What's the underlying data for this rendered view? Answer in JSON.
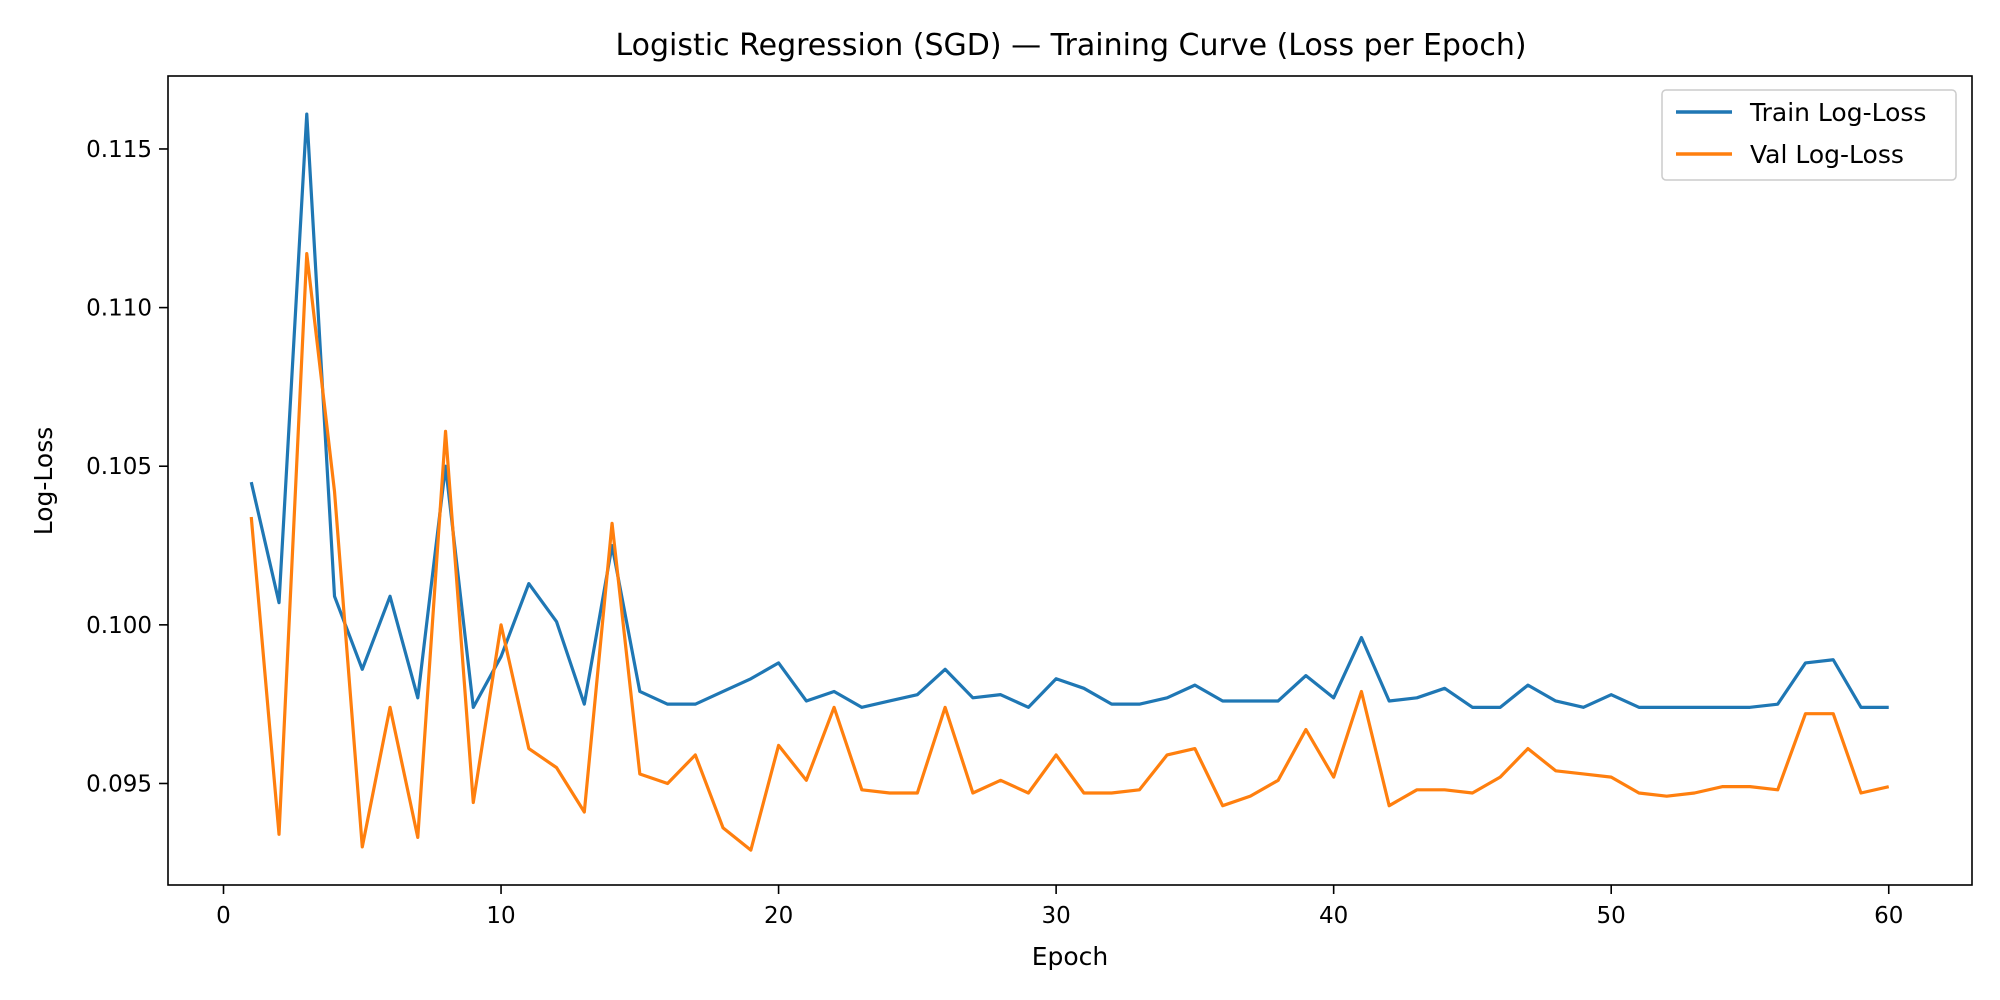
{
  "chart_data": {
    "type": "line",
    "title": "Logistic Regression (SGD) — Training Curve (Loss per Epoch)",
    "xlabel": "Epoch",
    "ylabel": "Log-Loss",
    "xlim": [
      -2,
      63
    ],
    "ylim": [
      0.0918,
      0.1173
    ],
    "xticks": [
      0,
      10,
      20,
      30,
      40,
      50,
      60
    ],
    "yticks": [
      0.095,
      0.1,
      0.105,
      0.11,
      0.115
    ],
    "ytick_labels": [
      "0.095",
      "0.100",
      "0.105",
      "0.110",
      "0.115"
    ],
    "grid": false,
    "legend_position": "top-right",
    "x": [
      1,
      2,
      3,
      4,
      5,
      6,
      7,
      8,
      9,
      10,
      11,
      12,
      13,
      14,
      15,
      16,
      17,
      18,
      19,
      20,
      21,
      22,
      23,
      24,
      25,
      26,
      27,
      28,
      29,
      30,
      31,
      32,
      33,
      34,
      35,
      36,
      37,
      38,
      39,
      40,
      41,
      42,
      43,
      44,
      45,
      46,
      47,
      48,
      49,
      50,
      51,
      52,
      53,
      54,
      55,
      56,
      57,
      58,
      59,
      60
    ],
    "series": [
      {
        "name": "Train Log-Loss",
        "color": "#1f77b4",
        "values": [
          0.1045,
          0.1007,
          0.1161,
          0.1009,
          0.0986,
          0.1009,
          0.0977,
          0.105,
          0.0974,
          0.099,
          0.1013,
          0.1001,
          0.0975,
          0.1025,
          0.0979,
          0.0975,
          0.0975,
          0.0979,
          0.0983,
          0.0988,
          0.0976,
          0.0979,
          0.0974,
          0.0976,
          0.0978,
          0.0986,
          0.0977,
          0.0978,
          0.0974,
          0.0983,
          0.098,
          0.0975,
          0.0975,
          0.0977,
          0.0981,
          0.0976,
          0.0976,
          0.0976,
          0.0984,
          0.0977,
          0.0996,
          0.0976,
          0.0977,
          0.098,
          0.0974,
          0.0974,
          0.0981,
          0.0976,
          0.0974,
          0.0978,
          0.0974,
          0.0974,
          0.0974,
          0.0974,
          0.0974,
          0.0975,
          0.0988,
          0.0989,
          0.0974,
          0.0974
        ]
      },
      {
        "name": "Val Log-Loss",
        "color": "#ff7f0e",
        "values": [
          0.1034,
          0.0934,
          0.1117,
          0.1042,
          0.093,
          0.0974,
          0.0933,
          0.1061,
          0.0944,
          0.1,
          0.0961,
          0.0955,
          0.0941,
          0.1032,
          0.0953,
          0.095,
          0.0959,
          0.0936,
          0.0929,
          0.0962,
          0.0951,
          0.0974,
          0.0948,
          0.0947,
          0.0947,
          0.0974,
          0.0947,
          0.0951,
          0.0947,
          0.0959,
          0.0947,
          0.0947,
          0.0948,
          0.0959,
          0.0961,
          0.0943,
          0.0946,
          0.0951,
          0.0967,
          0.0952,
          0.0979,
          0.0943,
          0.0948,
          0.0948,
          0.0947,
          0.0952,
          0.0961,
          0.0954,
          0.0953,
          0.0952,
          0.0947,
          0.0946,
          0.0947,
          0.0949,
          0.0949,
          0.0948,
          0.0972,
          0.0972,
          0.0947,
          0.0949
        ]
      }
    ]
  }
}
